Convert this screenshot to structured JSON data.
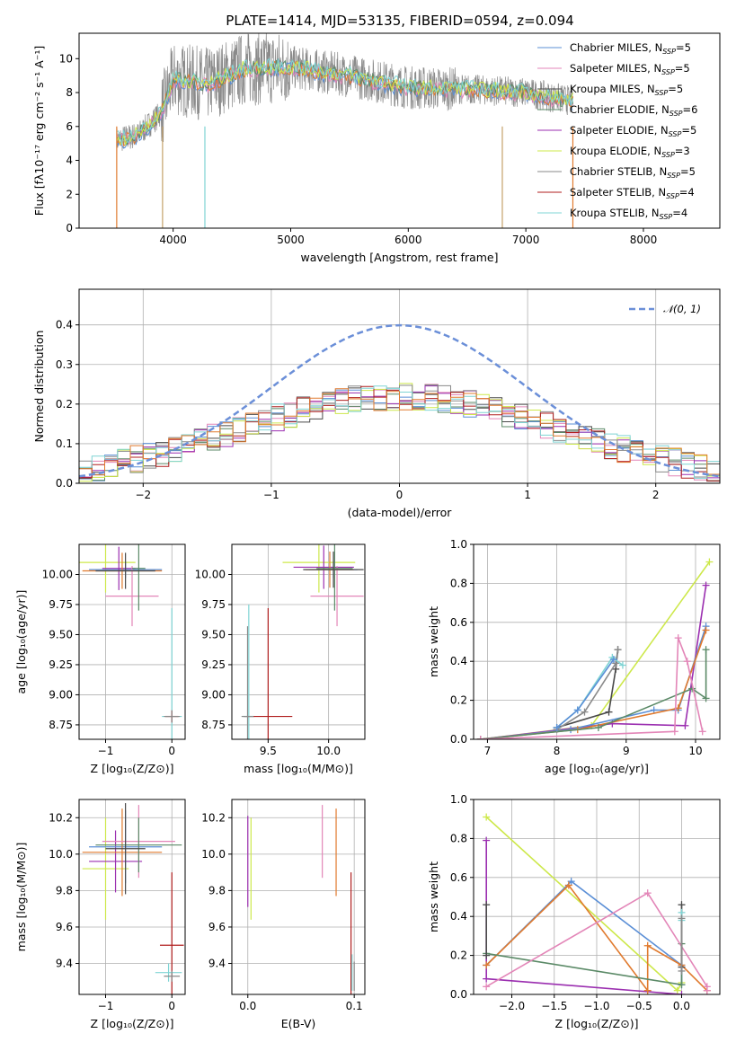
{
  "title": "PLATE=1414, MJD=53135, FIBERID=0594, z=0.094",
  "colors": {
    "Chabrier MILES": "#5b8fd6",
    "Salpeter MILES": "#e386b8",
    "Kroupa MILES": "#4a4a4a",
    "Chabrier ELODIE": "#5b8a67",
    "Salpeter ELODIE": "#9b2fb0",
    "Kroupa ELODIE": "#cde84a",
    "Chabrier STELIB": "#8a8a8a",
    "Salpeter STELIB": "#b01e1e",
    "Kroupa STELIB": "#7fd4d4",
    "orange": "#e07a2e",
    "normal": "#6b8fd8"
  },
  "chart_data": [
    {
      "id": "spectrum",
      "type": "line",
      "xlabel": "wavelength [Angstrom, rest frame]",
      "ylabel": "Flux [fλ10⁻¹⁷ erg cm⁻² s⁻¹ A⁻¹]",
      "xlim": [
        3200,
        8650
      ],
      "ylim": [
        0,
        11.5
      ],
      "xticks": [
        4000,
        5000,
        6000,
        7000,
        8000
      ],
      "yticks": [
        0,
        2,
        4,
        6,
        8,
        10
      ],
      "legend": "right",
      "legend_entries": [
        {
          "name": "Chabrier MILES",
          "nssp": "5"
        },
        {
          "name": "Salpeter MILES",
          "nssp": "5"
        },
        {
          "name": "Kroupa MILES",
          "nssp": "5"
        },
        {
          "name": "Chabrier ELODIE",
          "nssp": "6"
        },
        {
          "name": "Salpeter ELODIE",
          "nssp": "5"
        },
        {
          "name": "Kroupa ELODIE",
          "nssp": "3"
        },
        {
          "name": "Chabrier STELIB",
          "nssp": "5"
        },
        {
          "name": "Salpeter STELIB",
          "nssp": "4"
        },
        {
          "name": "Kroupa STELIB",
          "nssp": "4"
        }
      ],
      "continuum": [
        [
          3520,
          5.2
        ],
        [
          3700,
          5.5
        ],
        [
          3900,
          6.8
        ],
        [
          4000,
          8.8
        ],
        [
          4300,
          8.5
        ],
        [
          4600,
          9.4
        ],
        [
          5000,
          9.5
        ],
        [
          5500,
          9.0
        ],
        [
          6000,
          8.3
        ],
        [
          6500,
          8.2
        ],
        [
          7000,
          8.0
        ],
        [
          7400,
          7.5
        ]
      ],
      "data_range": [
        3520,
        7400
      ]
    },
    {
      "id": "residuals",
      "type": "line",
      "xlabel": "(data-model)/error",
      "ylabel": "Normed distribution",
      "xlim": [
        -2.5,
        2.5
      ],
      "ylim": [
        0,
        0.49
      ],
      "xticks": [
        -2,
        -1,
        0,
        1,
        2
      ],
      "yticks": [
        0.0,
        0.1,
        0.2,
        0.3,
        0.4
      ],
      "legend": "top-right",
      "legend_label": "𝒩(0, 1)",
      "bin_width": 0.1
    },
    {
      "id": "age_Z",
      "type": "scatter",
      "xlabel": "Z [log₁₀(Z/Z⊙)]",
      "ylabel": "age  [log₁₀(age/yr)]",
      "xlim": [
        -1.4,
        0.2
      ],
      "ylim": [
        8.63,
        10.25
      ],
      "xticks": [
        -1,
        0
      ],
      "yticks": [
        8.75,
        9.0,
        9.25,
        9.5,
        9.75,
        10.0
      ],
      "points": [
        {
          "c": "Kroupa ELODIE",
          "x": -1.0,
          "y": 10.1,
          "ex": 0.45,
          "ey": 0.25
        },
        {
          "c": "Chabrier MILES",
          "x": -0.7,
          "y": 10.04,
          "ex": 0.55,
          "ey": 0.07
        },
        {
          "c": "Salpeter ELODIE",
          "x": -0.8,
          "y": 10.05,
          "ex": 0.25,
          "ey": 0.18
        },
        {
          "c": "orange",
          "x": -0.75,
          "y": 10.03,
          "ex": 0.6,
          "ey": 0.15
        },
        {
          "c": "Salpeter MILES",
          "x": -0.6,
          "y": 9.82,
          "ex": 0.4,
          "ey": 0.25
        },
        {
          "c": "Chabrier ELODIE",
          "x": -0.5,
          "y": 10.05,
          "ex": 0.1,
          "ey": 0.35
        },
        {
          "c": "Kroupa MILES",
          "x": -0.7,
          "y": 10.03,
          "ex": 0.45,
          "ey": 0.15
        },
        {
          "c": "Kroupa STELIB",
          "x": 0.0,
          "y": 8.82,
          "ex": 0.15,
          "ey": 0.9
        },
        {
          "c": "Salpeter STELIB",
          "x": 0.0,
          "y": 8.82,
          "ex": 0.1,
          "ey": 0.05
        },
        {
          "c": "Chabrier STELIB",
          "x": 0.0,
          "y": 8.82,
          "ex": 0.12,
          "ey": 0.05
        }
      ]
    },
    {
      "id": "age_mass",
      "type": "scatter",
      "xlabel": "mass [log₁₀(M/M⊙)]",
      "ylabel": "",
      "xlim": [
        9.2,
        10.3
      ],
      "ylim": [
        8.63,
        10.25
      ],
      "xticks": [
        9.5,
        10.0
      ],
      "yticks": [
        8.75,
        9.0,
        9.25,
        9.5,
        9.75,
        10.0
      ],
      "points": [
        {
          "c": "Kroupa ELODIE",
          "x": 9.92,
          "y": 10.1,
          "ex": 0.3,
          "ey": 0.25
        },
        {
          "c": "Salpeter ELODIE",
          "x": 9.96,
          "y": 10.06,
          "ex": 0.25,
          "ey": 0.18
        },
        {
          "c": "Chabrier MILES",
          "x": 10.04,
          "y": 10.04,
          "ex": 0.2,
          "ey": 0.07
        },
        {
          "c": "orange",
          "x": 10.01,
          "y": 10.04,
          "ex": 0.2,
          "ey": 0.15
        },
        {
          "c": "Salpeter MILES",
          "x": 10.07,
          "y": 9.82,
          "ex": 0.22,
          "ey": 0.25
        },
        {
          "c": "Chabrier ELODIE",
          "x": 10.05,
          "y": 10.05,
          "ex": 0.15,
          "ey": 0.35
        },
        {
          "c": "Kroupa MILES",
          "x": 10.04,
          "y": 10.04,
          "ex": 0.25,
          "ey": 0.15
        },
        {
          "c": "Kroupa STELIB",
          "x": 9.34,
          "y": 8.82,
          "ex": 0.05,
          "ey": 0.93
        },
        {
          "c": "Salpeter STELIB",
          "x": 9.5,
          "y": 8.82,
          "ex": 0.2,
          "ey": 0.9
        },
        {
          "c": "Chabrier STELIB",
          "x": 9.33,
          "y": 8.82,
          "ex": 0.05,
          "ey": 0.75
        }
      ]
    },
    {
      "id": "weight_age",
      "type": "line",
      "xlabel": "age  [log₁₀(age/yr)]",
      "ylabel": "mass weight",
      "xlim": [
        6.8,
        10.35
      ],
      "ylim": [
        0,
        1.0
      ],
      "xticks": [
        7,
        8,
        9,
        10
      ],
      "yticks": [
        0.0,
        0.2,
        0.4,
        0.6,
        0.8,
        1.0
      ],
      "series": [
        {
          "c": "Kroupa ELODIE",
          "x": [
            6.9,
            8.5,
            10.2
          ],
          "y": [
            0.0,
            0.07,
            0.91
          ]
        },
        {
          "c": "Salpeter ELODIE",
          "x": [
            6.9,
            8.8,
            9.85,
            10.15
          ],
          "y": [
            0.0,
            0.08,
            0.07,
            0.79
          ]
        },
        {
          "c": "Chabrier MILES",
          "x": [
            6.9,
            8.2,
            9.4,
            9.75,
            10.15
          ],
          "y": [
            0.0,
            0.05,
            0.15,
            0.15,
            0.58
          ]
        },
        {
          "c": "orange",
          "x": [
            6.9,
            8.3,
            9.75,
            10.15
          ],
          "y": [
            0.0,
            0.05,
            0.16,
            0.56
          ]
        },
        {
          "c": "Chabrier ELODIE",
          "x": [
            6.9,
            8.6,
            9.95,
            10.15,
            10.15
          ],
          "y": [
            0.0,
            0.06,
            0.26,
            0.21,
            0.46
          ]
        },
        {
          "c": "Salpeter MILES",
          "x": [
            6.9,
            9.7,
            9.75,
            9.88,
            10.1
          ],
          "y": [
            0.0,
            0.04,
            0.52,
            0.4,
            0.04
          ]
        },
        {
          "c": "Kroupa MILES",
          "x": [
            8.0,
            8.75,
            8.85,
            8.88
          ],
          "y": [
            0.06,
            0.14,
            0.36,
            0.46
          ]
        },
        {
          "c": "Chabrier STELIB",
          "x": [
            8.0,
            8.4,
            8.85,
            8.88
          ],
          "y": [
            0.05,
            0.14,
            0.39,
            0.46
          ]
        },
        {
          "c": "Kroupa STELIB",
          "x": [
            8.0,
            8.3,
            8.8,
            8.95
          ],
          "y": [
            0.06,
            0.15,
            0.42,
            0.38
          ]
        },
        {
          "c": "Chabrier MILES",
          "x": [
            8.0,
            8.3,
            8.82
          ],
          "y": [
            0.06,
            0.15,
            0.41
          ]
        }
      ]
    },
    {
      "id": "mass_Z",
      "type": "scatter",
      "xlabel": "Z [log₁₀(Z/Z⊙)]",
      "ylabel": "mass [log₁₀(M/M⊙)]",
      "xlim": [
        -1.4,
        0.2
      ],
      "ylim": [
        9.23,
        10.3
      ],
      "xticks": [
        -1,
        0
      ],
      "yticks": [
        9.4,
        9.6,
        9.8,
        10.0,
        10.2
      ],
      "points": [
        {
          "c": "Kroupa ELODIE",
          "x": -1.0,
          "y": 9.92,
          "ex": 0.35,
          "ey": 0.28
        },
        {
          "c": "Salpeter ELODIE",
          "x": -0.85,
          "y": 9.96,
          "ex": 0.4,
          "ey": 0.17
        },
        {
          "c": "Chabrier MILES",
          "x": -0.7,
          "y": 10.04,
          "ex": 0.55,
          "ey": 0.2
        },
        {
          "c": "orange",
          "x": -0.75,
          "y": 10.01,
          "ex": 0.6,
          "ey": 0.24
        },
        {
          "c": "Salpeter MILES",
          "x": -0.5,
          "y": 10.07,
          "ex": 0.55,
          "ey": 0.2
        },
        {
          "c": "Chabrier ELODIE",
          "x": -0.5,
          "y": 10.05,
          "ex": 0.65,
          "ey": 0.15
        },
        {
          "c": "Kroupa MILES",
          "x": -0.7,
          "y": 10.03,
          "ex": 0.3,
          "ey": 0.25
        },
        {
          "c": "Salpeter STELIB",
          "x": 0.0,
          "y": 9.5,
          "ex": 0.18,
          "ey": 0.4
        },
        {
          "c": "Kroupa STELIB",
          "x": -0.05,
          "y": 9.35,
          "ex": 0.2,
          "ey": 0.05
        },
        {
          "c": "Chabrier STELIB",
          "x": 0.0,
          "y": 9.33,
          "ex": 0.12,
          "ey": 0.03
        }
      ]
    },
    {
      "id": "mass_ebv",
      "type": "scatter",
      "xlabel": "E(B-V)",
      "ylabel": "",
      "xlim": [
        -0.015,
        0.11
      ],
      "ylim": [
        9.23,
        10.3
      ],
      "xticks": [
        0.0,
        0.1
      ],
      "yticks": [
        9.4,
        9.6,
        9.8,
        10.0,
        10.2
      ],
      "points": [
        {
          "c": "Salpeter ELODIE",
          "x": 0.0,
          "y": 9.96,
          "ey": 0.25
        },
        {
          "c": "Kroupa ELODIE",
          "x": 0.003,
          "y": 9.92,
          "ey": 0.28
        },
        {
          "c": "Salpeter MILES",
          "x": 0.07,
          "y": 10.07,
          "ey": 0.2
        },
        {
          "c": "orange",
          "x": 0.083,
          "y": 10.01,
          "ey": 0.24
        },
        {
          "c": "Salpeter STELIB",
          "x": 0.097,
          "y": 9.5,
          "ey": 0.4
        },
        {
          "c": "Kroupa STELIB",
          "x": 0.098,
          "y": 9.35,
          "ey": 0.1
        },
        {
          "c": "Chabrier STELIB",
          "x": 0.1,
          "y": 9.33,
          "ey": 0.08
        }
      ]
    },
    {
      "id": "weight_Z",
      "type": "line",
      "xlabel": "Z [log₁₀(Z/Z⊙)]",
      "ylabel": "mass weight",
      "xlim": [
        -2.45,
        0.45
      ],
      "ylim": [
        0,
        1.0
      ],
      "xticks": [
        -2.0,
        -1.5,
        -1.0,
        -0.5,
        0.0
      ],
      "yticks": [
        0.0,
        0.2,
        0.4,
        0.6,
        0.8,
        1.0
      ],
      "series": [
        {
          "c": "Kroupa ELODIE",
          "x": [
            -2.3,
            -0.05,
            0.0
          ],
          "y": [
            0.91,
            0.02,
            0.06
          ]
        },
        {
          "c": "Salpeter ELODIE",
          "x": [
            -2.3,
            -2.3,
            0.0
          ],
          "y": [
            0.79,
            0.08,
            0.0
          ]
        },
        {
          "c": "Chabrier MILES",
          "x": [
            -2.3,
            -1.3,
            0.0,
            0.0
          ],
          "y": [
            0.15,
            0.58,
            0.15,
            0.05
          ]
        },
        {
          "c": "orange",
          "x": [
            -2.3,
            -1.33,
            -0.4,
            -0.4,
            0.0,
            0.3
          ],
          "y": [
            0.15,
            0.56,
            0.02,
            0.25,
            0.15,
            0.02
          ]
        },
        {
          "c": "Chabrier ELODIE",
          "x": [
            -2.3,
            0.0,
            0.0
          ],
          "y": [
            0.21,
            0.05,
            0.26
          ]
        },
        {
          "c": "Salpeter MILES",
          "x": [
            -2.3,
            -0.4,
            0.3,
            0.3
          ],
          "y": [
            0.04,
            0.52,
            0.04,
            0.02
          ]
        },
        {
          "c": "Kroupa MILES",
          "x": [
            -2.3,
            -2.3
          ],
          "y": [
            0.2,
            0.46
          ]
        },
        {
          "c": "Kroupa MILES",
          "x": [
            0.0,
            0.0
          ],
          "y": [
            0.14,
            0.46
          ]
        },
        {
          "c": "Kroupa STELIB",
          "x": [
            0.0,
            0.0
          ],
          "y": [
            0.42,
            0.38
          ]
        },
        {
          "c": "Chabrier STELIB",
          "x": [
            0.0,
            0.0
          ],
          "y": [
            0.39,
            0.12
          ]
        }
      ]
    }
  ]
}
